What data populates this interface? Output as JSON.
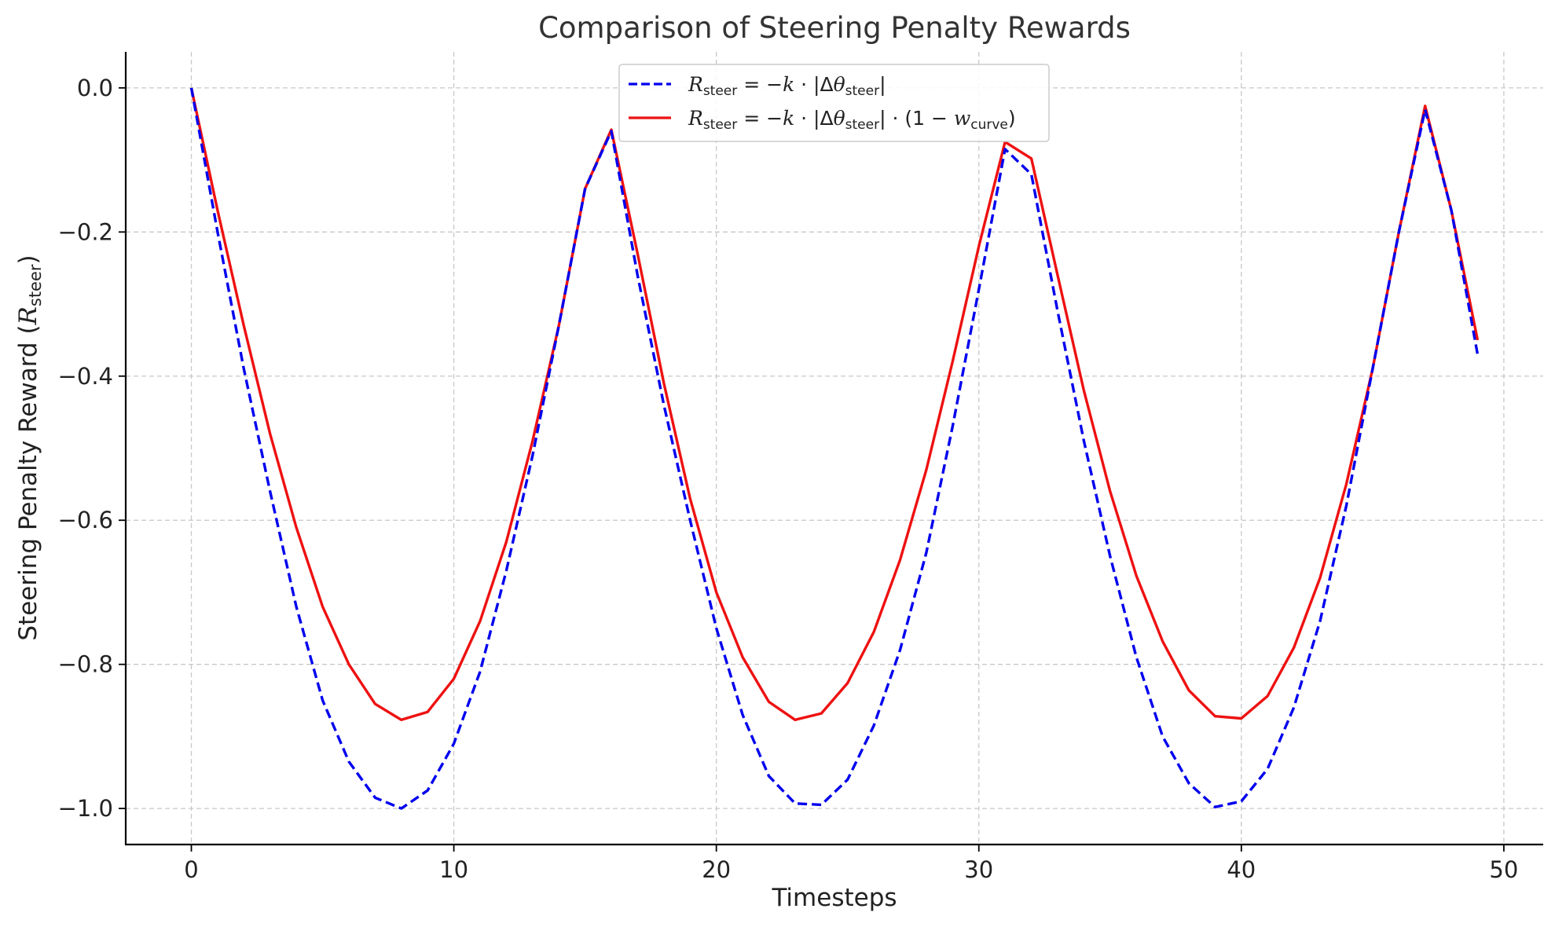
{
  "chart_data": {
    "type": "line",
    "title": "Comparison of Steering Penalty Rewards",
    "xlabel": "Timesteps",
    "ylabel": {
      "main": "Steering Penalty Reward (",
      "symbol": "R",
      "subscript": "steer",
      "close": ")"
    },
    "xlim": [
      -2.5,
      51.5
    ],
    "ylim": [
      -1.05,
      0.05
    ],
    "xticks": [
      0,
      10,
      20,
      30,
      40,
      50
    ],
    "yticks": [
      0.0,
      -0.2,
      -0.4,
      -0.6,
      -0.8,
      -1.0
    ],
    "xtick_labels": [
      "0",
      "10",
      "20",
      "30",
      "40",
      "50"
    ],
    "ytick_labels": [
      "0.0",
      "−0.2",
      "−0.4",
      "−0.6",
      "−0.8",
      "−1.0"
    ],
    "grid": true,
    "legend_position": "top-center",
    "x": [
      0,
      1,
      2,
      3,
      4,
      5,
      6,
      7,
      8,
      9,
      10,
      11,
      12,
      13,
      14,
      15,
      16,
      17,
      18,
      19,
      20,
      21,
      22,
      23,
      24,
      25,
      26,
      27,
      28,
      29,
      30,
      31,
      32,
      33,
      34,
      35,
      36,
      37,
      38,
      39,
      40,
      41,
      42,
      43,
      44,
      45,
      46,
      47,
      48,
      49
    ],
    "series": [
      {
        "name": "R_steer = −k·|Δθ_steer|",
        "legend": {
          "lhs": "R",
          "lhs_sub": "steer",
          "eq": " = −",
          "k": "k",
          "dot": " · |Δ",
          "theta": "θ",
          "theta_sub": "steer",
          "tail": "|"
        },
        "color": "#0000ee",
        "style": "dashed",
        "values": [
          0.0,
          -0.2,
          -0.39,
          -0.56,
          -0.72,
          -0.85,
          -0.935,
          -0.985,
          -1.0,
          -0.975,
          -0.91,
          -0.81,
          -0.67,
          -0.51,
          -0.33,
          -0.14,
          -0.06,
          -0.26,
          -0.44,
          -0.6,
          -0.75,
          -0.87,
          -0.955,
          -0.993,
          -0.995,
          -0.96,
          -0.885,
          -0.78,
          -0.645,
          -0.47,
          -0.28,
          -0.085,
          -0.12,
          -0.31,
          -0.49,
          -0.65,
          -0.79,
          -0.9,
          -0.965,
          -0.998,
          -0.99,
          -0.945,
          -0.86,
          -0.74,
          -0.58,
          -0.39,
          -0.2,
          -0.03,
          -0.17,
          -0.37
        ]
      },
      {
        "name": "R_steer = −k·|Δθ_steer|·(1−w_curve)",
        "legend": {
          "lhs": "R",
          "lhs_sub": "steer",
          "eq": " = −",
          "k": "k",
          "dot": " · |Δ",
          "theta": "θ",
          "theta_sub": "steer",
          "tail": "| · (1 − ",
          "w": "w",
          "w_sub": "curve",
          "close": ")"
        },
        "color": "#ee1111",
        "style": "solid",
        "values": [
          0.0,
          -0.17,
          -0.33,
          -0.48,
          -0.61,
          -0.72,
          -0.8,
          -0.855,
          -0.877,
          -0.866,
          -0.82,
          -0.74,
          -0.63,
          -0.49,
          -0.33,
          -0.14,
          -0.058,
          -0.23,
          -0.41,
          -0.57,
          -0.7,
          -0.79,
          -0.852,
          -0.877,
          -0.868,
          -0.826,
          -0.755,
          -0.655,
          -0.53,
          -0.38,
          -0.22,
          -0.075,
          -0.098,
          -0.26,
          -0.42,
          -0.56,
          -0.677,
          -0.768,
          -0.836,
          -0.872,
          -0.875,
          -0.844,
          -0.777,
          -0.68,
          -0.55,
          -0.39,
          -0.2,
          -0.025,
          -0.17,
          -0.35
        ]
      }
    ]
  }
}
